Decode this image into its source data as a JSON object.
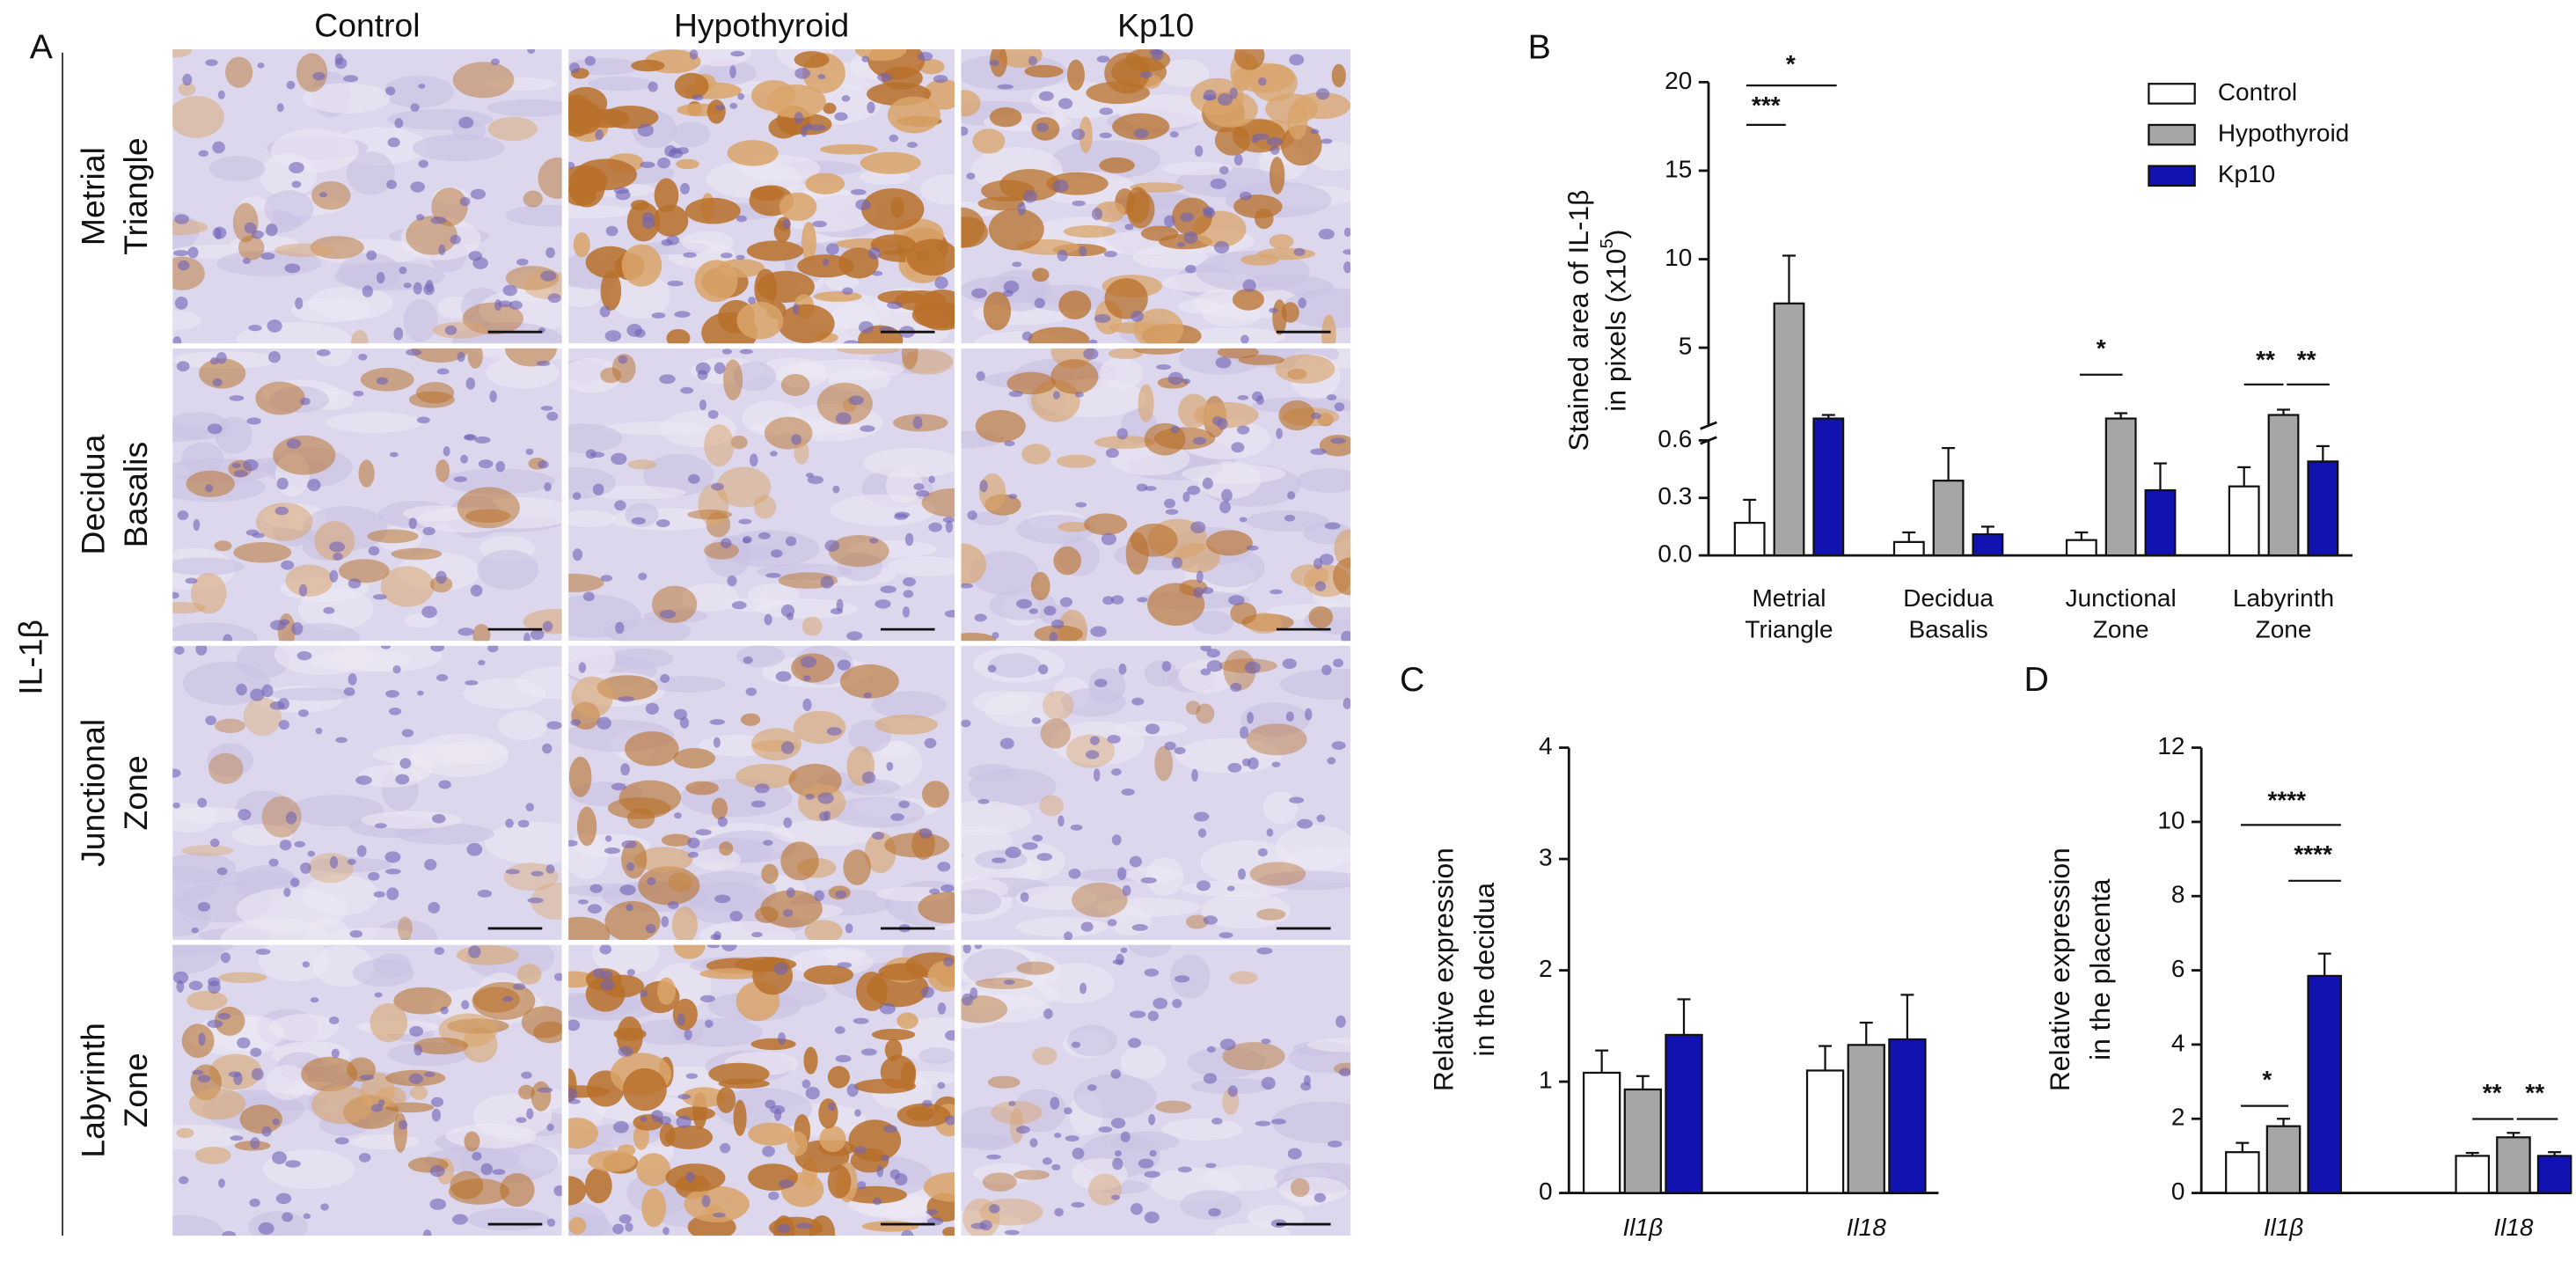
{
  "figure": {
    "panel_labels": [
      "A",
      "B",
      "C",
      "D"
    ],
    "micrographs": {
      "columns": [
        "Control",
        "Hypothyroid",
        "Kp10"
      ],
      "rows": [
        [
          "Metrial",
          "Triangle"
        ],
        [
          "Decidua",
          "Basalis"
        ],
        [
          "Junctional",
          "Zone"
        ],
        [
          "Labyrinth",
          "Zone"
        ]
      ],
      "stain": "IL-1β"
    }
  },
  "chart_data": [
    {
      "type": "bar",
      "y_label": {
        "line1": "Stained area of IL-1β",
        "line2": "in pixels (x10",
        "sup": "5",
        "close": ")"
      },
      "categories": [
        [
          "Metrial",
          "Triangle"
        ],
        [
          "Decidua",
          "Basalis"
        ],
        [
          "Junctional",
          "Zone"
        ],
        [
          "Labyrinth",
          "Zone"
        ]
      ],
      "series": [
        {
          "name": "Control",
          "color": "#ffffff",
          "values": [
            0.17,
            0.07,
            0.08,
            0.36
          ],
          "errors": [
            0.12,
            0.05,
            0.04,
            0.1
          ]
        },
        {
          "name": "Hypothyroid",
          "color": "#a6a6a6",
          "values": [
            7.5,
            0.39,
            1.0,
            1.2
          ],
          "errors": [
            2.7,
            0.17,
            0.3,
            0.3
          ]
        },
        {
          "name": "Kp10",
          "color": "#1212b0",
          "values": [
            1.0,
            0.11,
            0.34,
            0.49
          ],
          "errors": [
            0.2,
            0.04,
            0.14,
            0.08
          ]
        }
      ],
      "ylim": [
        0,
        20
      ],
      "ybreak": 0.6,
      "yticks": [
        {
          "value": 0,
          "label": "0.0"
        },
        0.3,
        0.6,
        5,
        10,
        15,
        20
      ],
      "legend": "upper right",
      "annotations": [
        "***",
        "*",
        "*",
        "**",
        "**"
      ]
    },
    {
      "type": "bar",
      "y_label": {
        "line1": "Relative expression",
        "line2": "in the decidua"
      },
      "categories": [
        "Il1β",
        "Il18"
      ],
      "series": [
        {
          "name": "Control",
          "color": "#ffffff",
          "values": [
            1.08,
            1.1
          ],
          "errors": [
            0.2,
            0.22
          ]
        },
        {
          "name": "Hypothyroid",
          "color": "#a6a6a6",
          "values": [
            0.93,
            1.33
          ],
          "errors": [
            0.12,
            0.2
          ]
        },
        {
          "name": "Kp10",
          "color": "#1212b0",
          "values": [
            1.42,
            1.38
          ],
          "errors": [
            0.32,
            0.4
          ]
        }
      ],
      "ylim": [
        0,
        4
      ],
      "yticks": [
        0,
        1,
        2,
        3,
        4
      ]
    },
    {
      "type": "bar",
      "y_label": {
        "line1": "Relative expression",
        "line2": "in the placenta"
      },
      "categories": [
        "Il1β",
        "Il18"
      ],
      "series": [
        {
          "name": "Control",
          "color": "#ffffff",
          "values": [
            1.1,
            1.0
          ],
          "errors": [
            0.25,
            0.08
          ]
        },
        {
          "name": "Hypothyroid",
          "color": "#a6a6a6",
          "values": [
            1.8,
            1.5
          ],
          "errors": [
            0.2,
            0.12
          ]
        },
        {
          "name": "Kp10",
          "color": "#1212b0",
          "values": [
            5.85,
            1.0
          ],
          "errors": [
            0.6,
            0.1
          ]
        }
      ],
      "ylim": [
        0,
        12
      ],
      "yticks": [
        0,
        2,
        4,
        6,
        8,
        10,
        12
      ],
      "annotations": [
        "****",
        "****",
        "*",
        "**",
        "**"
      ]
    }
  ]
}
